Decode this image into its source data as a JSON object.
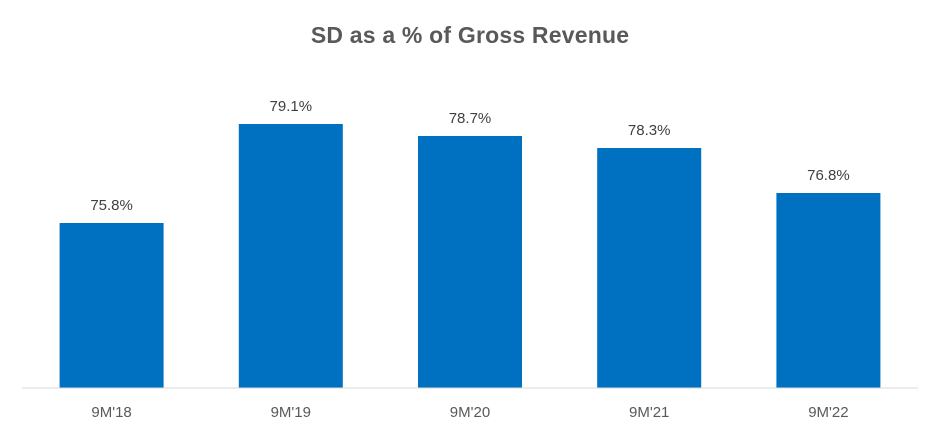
{
  "chart_data": {
    "type": "bar",
    "title": "SD as a % of Gross Revenue",
    "categories": [
      "9M'18",
      "9M'19",
      "9M'20",
      "9M'21",
      "9M'22"
    ],
    "values": [
      75.8,
      79.1,
      78.7,
      78.3,
      76.8
    ],
    "value_labels": [
      "75.8%",
      "79.1%",
      "78.7%",
      "78.3%",
      "76.8%"
    ],
    "xlabel": "",
    "ylabel": "",
    "ylim": [
      70.3,
      80.3
    ],
    "bar_color": "#0070C0",
    "axis_color": "#D9D9D9",
    "grid": false,
    "legend": "none"
  }
}
